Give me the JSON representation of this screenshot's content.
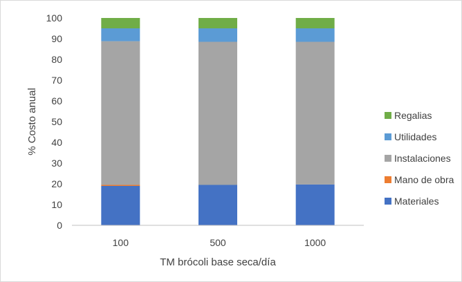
{
  "chart_data": {
    "type": "bar",
    "stacked": true,
    "categories": [
      "100",
      "500",
      "1000"
    ],
    "xlabel": "TM brócoli base seca/día",
    "ylabel": "% Costo  anual",
    "ylim": [
      0,
      100
    ],
    "yticks": [
      "0",
      "10",
      "20",
      "30",
      "40",
      "50",
      "60",
      "70",
      "80",
      "90",
      "100"
    ],
    "grid": false,
    "legend_position": "right",
    "series": [
      {
        "name": "Materiales",
        "color": "#4472c4",
        "values": [
          19,
          19.5,
          19.7
        ]
      },
      {
        "name": "Mano de obra",
        "color": "#ed7d31",
        "values": [
          0.5,
          0,
          0
        ]
      },
      {
        "name": "Instalaciones",
        "color": "#a5a5a5",
        "values": [
          69.3,
          69,
          68.8
        ]
      },
      {
        "name": "Utilidades",
        "color": "#5b9bd5",
        "values": [
          6.2,
          6.5,
          6.5
        ]
      },
      {
        "name": "Regalias",
        "color": "#70ad47",
        "values": [
          5,
          5,
          5
        ]
      }
    ]
  }
}
